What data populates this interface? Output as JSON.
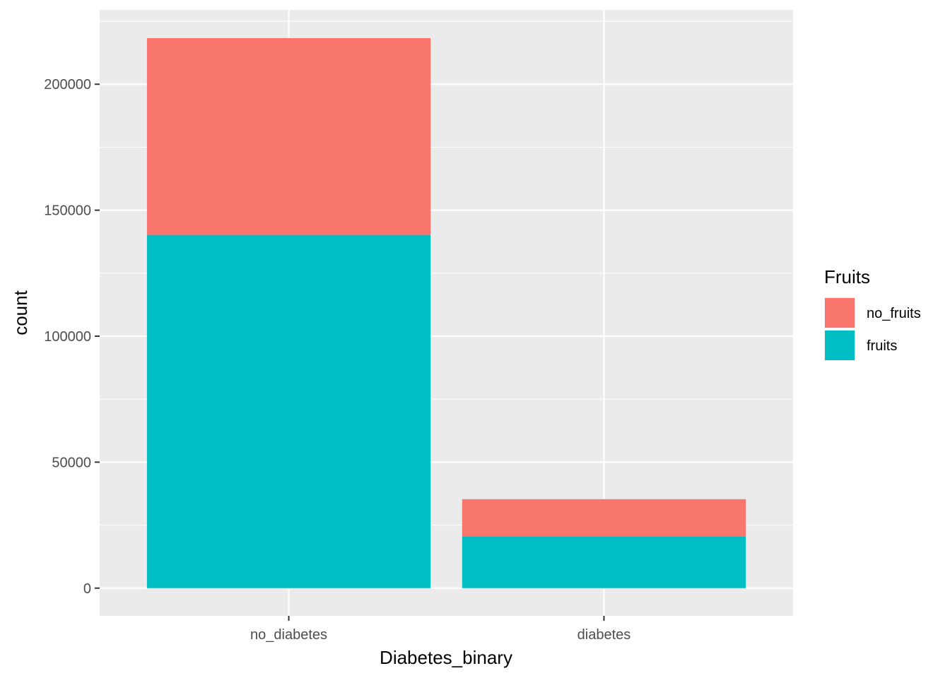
{
  "chart_data": {
    "type": "bar",
    "stacked": true,
    "title": "",
    "xlabel": "Diabetes_binary",
    "ylabel": "count",
    "categories": [
      "no_diabetes",
      "diabetes"
    ],
    "series": [
      {
        "name": "fruits",
        "color": "#00BFC4",
        "values": [
          140200,
          20600
        ]
      },
      {
        "name": "no_fruits",
        "color": "#F8766D",
        "values": [
          78100,
          14700
        ]
      }
    ],
    "ylim": [
      -11000,
      229500
    ],
    "yticks": [
      0,
      50000,
      100000,
      150000,
      200000
    ],
    "ytick_labels": [
      "0",
      "50000",
      "100000",
      "150000",
      "200000"
    ],
    "grid": true,
    "panel_background": "#EBEBEB",
    "legend": {
      "title": "Fruits",
      "position": "right",
      "items": [
        {
          "label": "no_fruits",
          "color": "#F8766D"
        },
        {
          "label": "fruits",
          "color": "#00BFC4"
        }
      ]
    }
  }
}
